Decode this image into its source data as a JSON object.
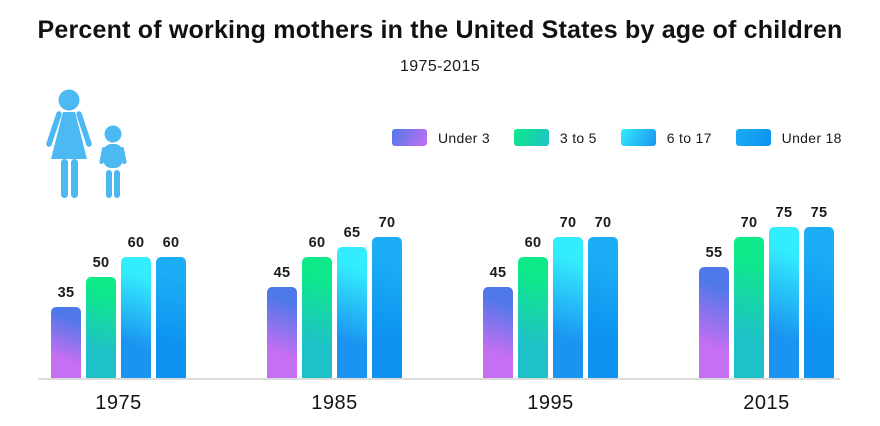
{
  "header": {
    "title": "Percent of working mothers in the United States by age of children",
    "subtitle": "1975-2015"
  },
  "icon": {
    "name": "mother-and-child",
    "color": "#4db9f2"
  },
  "legend": [
    {
      "label": "Under 3",
      "gradient": [
        "#4f78e8",
        "#c66ff2"
      ]
    },
    {
      "label": "3 to 5",
      "gradient": [
        "#0ee989",
        "#1fc1c9"
      ]
    },
    {
      "label": "6 to 17",
      "gradient": [
        "#33ecfd",
        "#1b93f1"
      ]
    },
    {
      "label": "Under 18",
      "gradient": [
        "#1badf5",
        "#0d92f0"
      ]
    }
  ],
  "chart_data": {
    "type": "bar",
    "title": "Percent of working mothers in the United States by age of children",
    "subtitle": "1975-2015",
    "unit": "percent",
    "categories": [
      "1975",
      "1985",
      "1995",
      "2015"
    ],
    "series": [
      {
        "name": "Under 3",
        "values": [
          35,
          45,
          45,
          55
        ]
      },
      {
        "name": "3 to 5",
        "values": [
          50,
          60,
          60,
          70
        ]
      },
      {
        "name": "6 to 17",
        "values": [
          60,
          65,
          70,
          75
        ]
      },
      {
        "name": "Under 18",
        "values": [
          60,
          70,
          70,
          75
        ]
      }
    ],
    "value_labels": true,
    "grid": false,
    "y_axis_shown": false,
    "legend_position": "top-right"
  }
}
